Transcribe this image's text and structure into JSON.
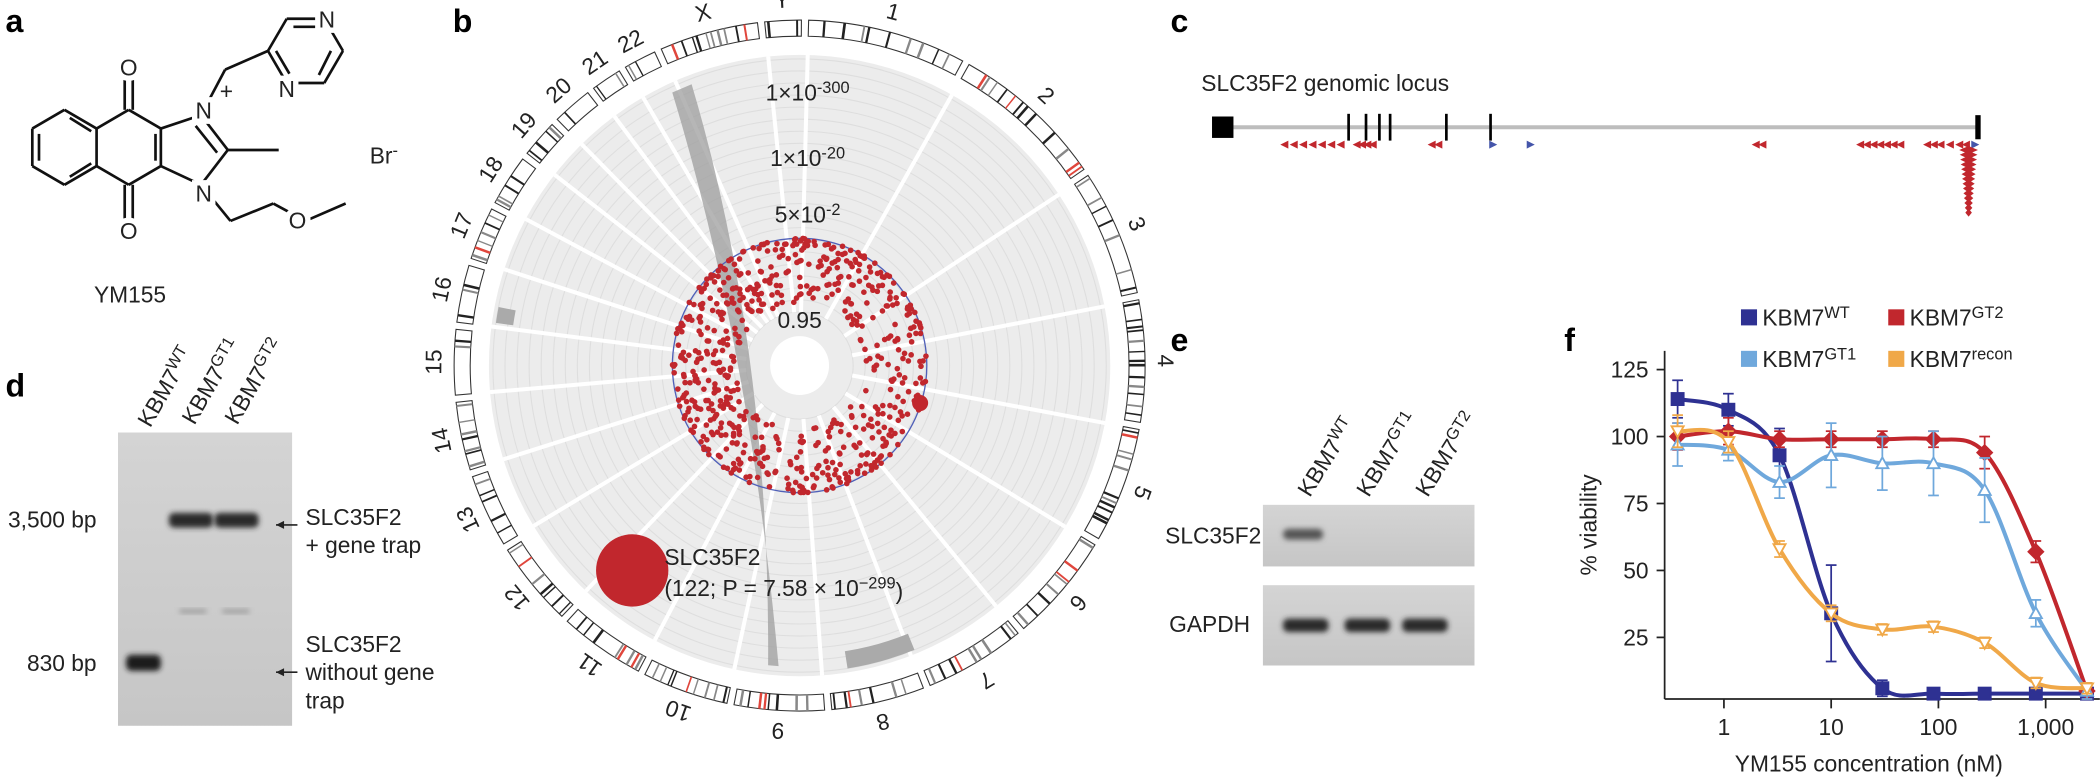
{
  "panels": [
    "a",
    "b",
    "c",
    "d",
    "e",
    "f"
  ],
  "structure": {
    "name": "YM155",
    "counterion": "Br",
    "counterion_charge": "-",
    "atoms": [
      "O",
      "O",
      "N",
      "N",
      "N",
      "N",
      "O"
    ],
    "cation_charge": "+"
  },
  "circos": {
    "chromosomes": [
      "1",
      "2",
      "3",
      "4",
      "5",
      "6",
      "7",
      "8",
      "9",
      "10",
      "11",
      "12",
      "13",
      "14",
      "15",
      "16",
      "17",
      "18",
      "19",
      "20",
      "21",
      "22",
      "X",
      "Y"
    ],
    "pvalue_labels": [
      {
        "base": "1×10",
        "exp": "-300"
      },
      {
        "base": "1×10",
        "exp": "-20"
      },
      {
        "base": "5×10",
        "exp": "-2"
      },
      {
        "base": "0.95",
        "exp": ""
      }
    ],
    "hit": {
      "gene": "SLC35F2",
      "stats": "(122; P = 7.58 × 10",
      "stats_exp": "−299",
      "stats_end": ")"
    }
  },
  "locus": {
    "title": "SLC35F2 genomic locus"
  },
  "gel_d": {
    "lanes": [
      {
        "name": "KBM7",
        "sup": "WT"
      },
      {
        "name": "KBM7",
        "sup": "GT1"
      },
      {
        "name": "KBM7",
        "sup": "GT2"
      }
    ],
    "markers": [
      "3,500 bp",
      "830 bp"
    ],
    "annotations": [
      [
        "SLC35F2",
        "+ gene trap"
      ],
      [
        "SLC35F2",
        "without gene",
        "trap"
      ]
    ]
  },
  "gel_e": {
    "lanes": [
      {
        "name": "KBM7",
        "sup": "WT"
      },
      {
        "name": "KBM7",
        "sup": "GT1"
      },
      {
        "name": "KBM7",
        "sup": "GT2"
      }
    ],
    "rows": [
      "SLC35F2",
      "GAPDH"
    ]
  },
  "chart_data": {
    "type": "line",
    "xlabel": "YM155 concentration (nM)",
    "ylabel": "% viability",
    "x": [
      0.37,
      1.1,
      3.3,
      10,
      30,
      90,
      270,
      810,
      2430
    ],
    "xscale": "log",
    "xlim": [
      0.28,
      3200
    ],
    "xticks": [
      1,
      10,
      100,
      {
        "value": 1000,
        "label": "1,000"
      }
    ],
    "ylim": [
      2,
      132
    ],
    "yticks": [
      25,
      50,
      75,
      100,
      125
    ],
    "legend": "top",
    "series": [
      {
        "name": "KBM7",
        "name_sup": "WT",
        "color": "#2e3192",
        "marker": "square",
        "values": [
          114,
          110,
          93,
          34,
          6,
          4,
          4,
          4,
          4
        ],
        "errors": [
          7,
          6,
          10,
          18,
          3,
          2,
          2,
          2,
          2
        ]
      },
      {
        "name": "KBM7",
        "name_sup": "GT2",
        "color": "#c1272d",
        "marker": "diamond",
        "values": [
          100,
          102,
          99,
          99,
          99,
          99,
          94,
          57,
          5
        ],
        "errors": [
          5,
          5,
          3,
          3,
          3,
          3,
          6,
          4,
          3
        ]
      },
      {
        "name": "KBM7",
        "name_sup": "GT1",
        "color": "#6fa8dc",
        "marker": "triangle-up",
        "values": [
          97,
          95,
          83,
          93,
          90,
          90,
          80,
          34,
          5
        ],
        "errors": [
          8,
          4,
          6,
          12,
          10,
          12,
          12,
          5,
          3
        ]
      },
      {
        "name": "KBM7",
        "name_sup": "recon",
        "color": "#f0a848",
        "marker": "triangle-down",
        "values": [
          102,
          98,
          58,
          34,
          28,
          29,
          23,
          8,
          6
        ],
        "errors": [
          6,
          4,
          3,
          3,
          2,
          2,
          2,
          2,
          2
        ]
      }
    ]
  }
}
